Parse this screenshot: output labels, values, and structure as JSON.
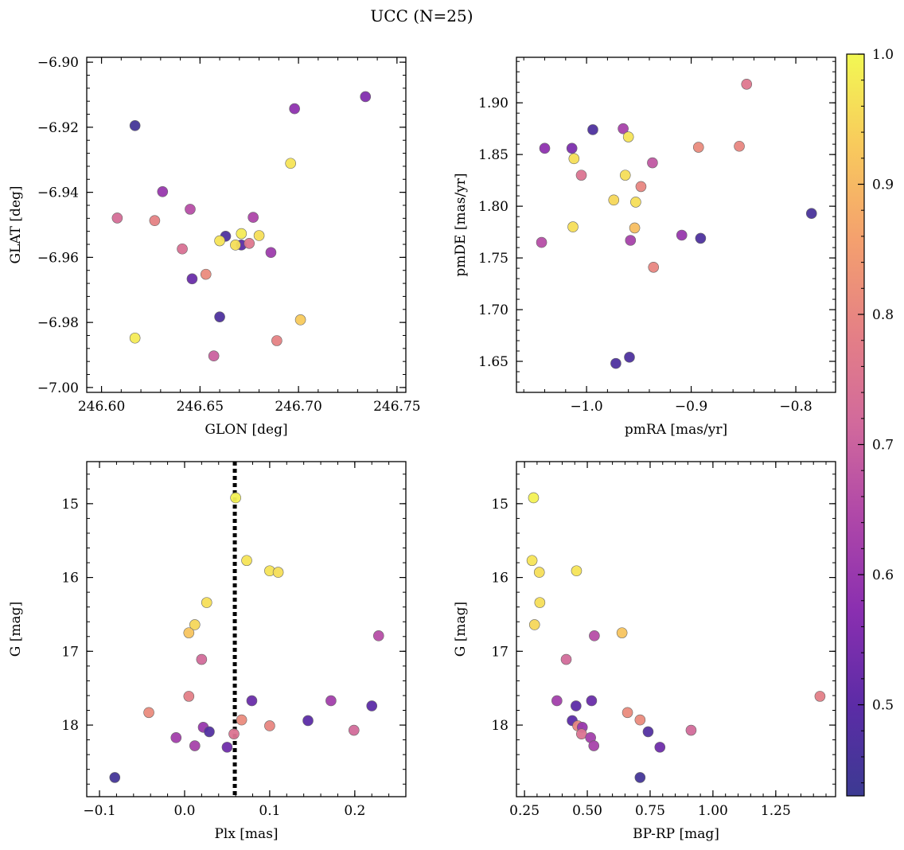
{
  "chart_data": {
    "title": "UCC (N=25)",
    "colorbar": {
      "colormap": "plasma",
      "range": [
        0.43,
        1.0
      ],
      "ticks": [
        0.5,
        0.6,
        0.7,
        0.8,
        0.9,
        1.0
      ],
      "tick_labels": [
        "0.5",
        "0.6",
        "0.7",
        "0.8",
        "0.9",
        "1.0"
      ]
    },
    "panels": [
      {
        "type": "scatter",
        "xlabel": "GLON [deg]",
        "ylabel": "GLAT [deg]",
        "xlim": [
          246.5925,
          246.7545
        ],
        "ylim": [
          -7.0015,
          -6.8985
        ],
        "y_inverted": false,
        "xticks": [
          246.6,
          246.65,
          246.7,
          246.75
        ],
        "xtick_labels": [
          "246.60",
          "246.65",
          "246.70",
          "246.75"
        ],
        "yticks": [
          -6.9,
          -6.92,
          -6.94,
          -6.96,
          -6.98,
          -7.0
        ],
        "ytick_labels": [
          "−6.90",
          "−6.92",
          "−6.94",
          "−6.96",
          "−6.98",
          "−7.00"
        ],
        "points": [
          {
            "x": 246.617,
            "y": -6.9195,
            "c": 0.45
          },
          {
            "x": 246.734,
            "y": -6.9106,
            "c": 0.56
          },
          {
            "x": 246.698,
            "y": -6.9143,
            "c": 0.58
          },
          {
            "x": 246.696,
            "y": -6.9311,
            "c": 0.97
          },
          {
            "x": 246.631,
            "y": -6.9398,
            "c": 0.6
          },
          {
            "x": 246.608,
            "y": -6.9479,
            "c": 0.73
          },
          {
            "x": 246.627,
            "y": -6.9487,
            "c": 0.79
          },
          {
            "x": 246.645,
            "y": -6.9452,
            "c": 0.66
          },
          {
            "x": 246.677,
            "y": -6.9477,
            "c": 0.64
          },
          {
            "x": 246.663,
            "y": -6.9535,
            "c": 0.47
          },
          {
            "x": 246.66,
            "y": -6.9549,
            "c": 0.97
          },
          {
            "x": 246.671,
            "y": -6.9527,
            "c": 0.98
          },
          {
            "x": 246.68,
            "y": -6.9533,
            "c": 0.96
          },
          {
            "x": 246.671,
            "y": -6.9562,
            "c": 0.5
          },
          {
            "x": 246.675,
            "y": -6.9557,
            "c": 0.76
          },
          {
            "x": 246.668,
            "y": -6.9562,
            "c": 0.96
          },
          {
            "x": 246.641,
            "y": -6.9574,
            "c": 0.74
          },
          {
            "x": 246.686,
            "y": -6.9585,
            "c": 0.61
          },
          {
            "x": 246.646,
            "y": -6.9666,
            "c": 0.52
          },
          {
            "x": 246.653,
            "y": -6.9652,
            "c": 0.81
          },
          {
            "x": 246.66,
            "y": -6.9783,
            "c": 0.47
          },
          {
            "x": 246.701,
            "y": -6.9792,
            "c": 0.93
          },
          {
            "x": 246.617,
            "y": -6.9848,
            "c": 0.98
          },
          {
            "x": 246.689,
            "y": -6.9856,
            "c": 0.79
          },
          {
            "x": 246.657,
            "y": -6.9903,
            "c": 0.7
          }
        ]
      },
      {
        "type": "scatter",
        "xlabel": "pmRA [mas/yr]",
        "ylabel": "pmDE [mas/yr]",
        "xlim": [
          -1.067,
          -0.762
        ],
        "ylim": [
          1.62,
          1.944
        ],
        "y_inverted": false,
        "xticks": [
          -1.0,
          -0.9,
          -0.8
        ],
        "xtick_labels": [
          "−1.0",
          "−0.9",
          "−0.8"
        ],
        "yticks": [
          1.65,
          1.7,
          1.75,
          1.8,
          1.85,
          1.9
        ],
        "ytick_labels": [
          "1.65",
          "1.70",
          "1.75",
          "1.80",
          "1.85",
          "1.90"
        ],
        "points": [
          {
            "x": -0.847,
            "y": 1.918,
            "c": 0.76
          },
          {
            "x": -0.994,
            "y": 1.874,
            "c": 0.47
          },
          {
            "x": -0.965,
            "y": 1.875,
            "c": 0.63
          },
          {
            "x": -0.96,
            "y": 1.867,
            "c": 0.97
          },
          {
            "x": -1.04,
            "y": 1.856,
            "c": 0.58
          },
          {
            "x": -1.014,
            "y": 1.856,
            "c": 0.55
          },
          {
            "x": -0.893,
            "y": 1.857,
            "c": 0.81
          },
          {
            "x": -0.854,
            "y": 1.858,
            "c": 0.8
          },
          {
            "x": -1.012,
            "y": 1.846,
            "c": 0.96
          },
          {
            "x": -0.937,
            "y": 1.842,
            "c": 0.68
          },
          {
            "x": -1.005,
            "y": 1.83,
            "c": 0.75
          },
          {
            "x": -0.963,
            "y": 1.83,
            "c": 0.96
          },
          {
            "x": -0.948,
            "y": 1.819,
            "c": 0.8
          },
          {
            "x": -0.974,
            "y": 1.806,
            "c": 0.95
          },
          {
            "x": -0.953,
            "y": 1.804,
            "c": 0.96
          },
          {
            "x": -0.785,
            "y": 1.793,
            "c": 0.46
          },
          {
            "x": -1.013,
            "y": 1.78,
            "c": 0.96
          },
          {
            "x": -0.954,
            "y": 1.779,
            "c": 0.91
          },
          {
            "x": -0.909,
            "y": 1.772,
            "c": 0.6
          },
          {
            "x": -0.891,
            "y": 1.769,
            "c": 0.47
          },
          {
            "x": -0.958,
            "y": 1.767,
            "c": 0.63
          },
          {
            "x": -1.043,
            "y": 1.765,
            "c": 0.66
          },
          {
            "x": -0.936,
            "y": 1.741,
            "c": 0.8
          },
          {
            "x": -0.959,
            "y": 1.654,
            "c": 0.47
          },
          {
            "x": -0.972,
            "y": 1.648,
            "c": 0.47
          }
        ]
      },
      {
        "type": "scatter",
        "xlabel": "Plx [mas]",
        "ylabel": "G [mag]",
        "xlim": [
          -0.115,
          0.26
        ],
        "ylim": [
          14.43,
          18.97
        ],
        "y_inverted": true,
        "xticks": [
          -0.1,
          0.0,
          0.1,
          0.2
        ],
        "xtick_labels": [
          "−0.1",
          "0.0",
          "0.1",
          "0.2"
        ],
        "yticks": [
          15,
          16,
          17,
          18
        ],
        "ytick_labels": [
          "15",
          "16",
          "17",
          "18"
        ],
        "vertical_line": {
          "x": 0.059,
          "style": "dotted",
          "color": "#000000"
        },
        "points": [
          {
            "x": 0.06,
            "y": 14.92,
            "c": 0.99
          },
          {
            "x": 0.073,
            "y": 15.77,
            "c": 0.97
          },
          {
            "x": 0.1,
            "y": 15.91,
            "c": 0.97
          },
          {
            "x": 0.11,
            "y": 15.93,
            "c": 0.96
          },
          {
            "x": 0.026,
            "y": 16.34,
            "c": 0.96
          },
          {
            "x": 0.012,
            "y": 16.64,
            "c": 0.95
          },
          {
            "x": 0.005,
            "y": 16.75,
            "c": 0.92
          },
          {
            "x": 0.228,
            "y": 16.79,
            "c": 0.66
          },
          {
            "x": 0.02,
            "y": 17.11,
            "c": 0.72
          },
          {
            "x": 0.005,
            "y": 17.61,
            "c": 0.78
          },
          {
            "x": 0.079,
            "y": 17.67,
            "c": 0.52
          },
          {
            "x": 0.172,
            "y": 17.67,
            "c": 0.62
          },
          {
            "x": 0.22,
            "y": 17.74,
            "c": 0.5
          },
          {
            "x": -0.042,
            "y": 17.83,
            "c": 0.81
          },
          {
            "x": 0.067,
            "y": 17.93,
            "c": 0.81
          },
          {
            "x": 0.145,
            "y": 17.94,
            "c": 0.5
          },
          {
            "x": 0.1,
            "y": 18.01,
            "c": 0.8
          },
          {
            "x": 0.022,
            "y": 18.03,
            "c": 0.6
          },
          {
            "x": 0.199,
            "y": 18.07,
            "c": 0.72
          },
          {
            "x": 0.029,
            "y": 18.09,
            "c": 0.48
          },
          {
            "x": 0.058,
            "y": 18.12,
            "c": 0.75
          },
          {
            "x": -0.01,
            "y": 18.17,
            "c": 0.62
          },
          {
            "x": 0.012,
            "y": 18.28,
            "c": 0.63
          },
          {
            "x": 0.05,
            "y": 18.3,
            "c": 0.53
          },
          {
            "x": -0.082,
            "y": 18.71,
            "c": 0.45
          }
        ]
      },
      {
        "type": "scatter",
        "xlabel": "BP-RP [mag]",
        "ylabel": "G [mag]",
        "xlim": [
          0.218,
          1.488
        ],
        "ylim": [
          14.43,
          18.97
        ],
        "y_inverted": true,
        "xticks": [
          0.25,
          0.5,
          0.75,
          1.0,
          1.25
        ],
        "xtick_labels": [
          "0.25",
          "0.50",
          "0.75",
          "1.00",
          "1.25"
        ],
        "yticks": [
          15,
          16,
          17,
          18
        ],
        "ytick_labels": [
          "15",
          "16",
          "17",
          "18"
        ],
        "points": [
          {
            "x": 0.286,
            "y": 14.92,
            "c": 0.99
          },
          {
            "x": 0.28,
            "y": 15.77,
            "c": 0.97
          },
          {
            "x": 0.309,
            "y": 15.93,
            "c": 0.96
          },
          {
            "x": 0.457,
            "y": 15.91,
            "c": 0.97
          },
          {
            "x": 0.311,
            "y": 16.34,
            "c": 0.96
          },
          {
            "x": 0.29,
            "y": 16.64,
            "c": 0.95
          },
          {
            "x": 0.638,
            "y": 16.75,
            "c": 0.92
          },
          {
            "x": 0.528,
            "y": 16.79,
            "c": 0.66
          },
          {
            "x": 0.416,
            "y": 17.11,
            "c": 0.72
          },
          {
            "x": 1.426,
            "y": 17.61,
            "c": 0.78
          },
          {
            "x": 0.379,
            "y": 17.67,
            "c": 0.62
          },
          {
            "x": 0.517,
            "y": 17.67,
            "c": 0.52
          },
          {
            "x": 0.455,
            "y": 17.74,
            "c": 0.5
          },
          {
            "x": 0.66,
            "y": 17.83,
            "c": 0.81
          },
          {
            "x": 0.71,
            "y": 17.93,
            "c": 0.81
          },
          {
            "x": 0.44,
            "y": 17.94,
            "c": 0.5
          },
          {
            "x": 0.462,
            "y": 18.01,
            "c": 0.8
          },
          {
            "x": 0.48,
            "y": 18.03,
            "c": 0.6
          },
          {
            "x": 0.913,
            "y": 18.07,
            "c": 0.72
          },
          {
            "x": 0.742,
            "y": 18.09,
            "c": 0.48
          },
          {
            "x": 0.477,
            "y": 18.12,
            "c": 0.75
          },
          {
            "x": 0.513,
            "y": 18.17,
            "c": 0.62
          },
          {
            "x": 0.526,
            "y": 18.28,
            "c": 0.63
          },
          {
            "x": 0.789,
            "y": 18.3,
            "c": 0.53
          },
          {
            "x": 0.71,
            "y": 18.71,
            "c": 0.45
          }
        ]
      }
    ]
  }
}
